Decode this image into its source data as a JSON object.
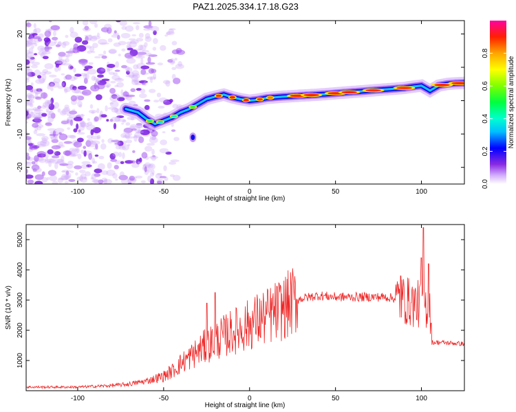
{
  "title": "PAZ1.2025.334.17.18.G23",
  "chart_data": [
    {
      "type": "heatmap",
      "name": "spectrogram",
      "xlabel": "Height of straight line (km)",
      "ylabel": "Frequency (Hz)",
      "xlim": [
        -130,
        125
      ],
      "ylim": [
        -25,
        24
      ],
      "xticks": [
        -100,
        -50,
        0,
        50,
        100
      ],
      "yticks": [
        -20,
        -10,
        0,
        10,
        20
      ],
      "xtick_labels": [
        "-100",
        "-50",
        "0",
        "50",
        "100"
      ],
      "ytick_labels": [
        "-20",
        "-10",
        "0",
        "10",
        "20"
      ],
      "ridge": {
        "x": [
          -72,
          -65,
          -60,
          -55,
          -50,
          -45,
          -40,
          -35,
          -30,
          -25,
          -20,
          -15,
          -10,
          -5,
          0,
          5,
          10,
          20,
          30,
          40,
          50,
          60,
          70,
          80,
          90,
          95,
          100,
          105,
          110,
          115,
          120,
          125
        ],
        "y": [
          -2.5,
          -3.5,
          -5.5,
          -7,
          -6,
          -5,
          -3.5,
          -2.5,
          -1,
          0.5,
          1.2,
          1.8,
          1.0,
          0.4,
          0.0,
          0.3,
          0.8,
          1.2,
          1.5,
          1.8,
          2.2,
          2.6,
          3.0,
          3.4,
          3.8,
          4.2,
          4.5,
          3.0,
          4.5,
          5.0,
          5.2,
          5.3
        ]
      },
      "noise_region_x": [
        -130,
        -55
      ],
      "colorbar": {
        "label": "Normalized spectral amplitude",
        "range": [
          0,
          1
        ],
        "ticks": [
          0.0,
          0.2,
          0.4,
          0.6,
          0.8
        ],
        "tick_labels": [
          "0.0",
          "0.2",
          "0.4",
          "0.6",
          "0.8"
        ]
      }
    },
    {
      "type": "line",
      "name": "snr",
      "xlabel": "Height of straight line (km)",
      "ylabel": "SNR (10 * v/v)",
      "xlim": [
        -130,
        125
      ],
      "ylim": [
        0,
        5500
      ],
      "xticks": [
        -100,
        -50,
        0,
        50,
        100
      ],
      "yticks": [
        1000,
        2000,
        3000,
        4000,
        5000
      ],
      "xtick_labels": [
        "-100",
        "-50",
        "0",
        "50",
        "100"
      ],
      "ytick_labels": [
        "1000",
        "2000",
        "3000",
        "4000",
        "5000"
      ],
      "color": "#ee2222",
      "envelope": {
        "x": [
          -130,
          -100,
          -80,
          -70,
          -60,
          -50,
          -45,
          -40,
          -35,
          -30,
          -25,
          -20,
          -15,
          -10,
          -5,
          0,
          5,
          10,
          15,
          20,
          25,
          30,
          40,
          50,
          60,
          70,
          80,
          85,
          90,
          95,
          100,
          103,
          105,
          106,
          110,
          125
        ],
        "y": [
          120,
          120,
          170,
          220,
          320,
          480,
          650,
          900,
          1100,
          1300,
          1500,
          1650,
          1800,
          1950,
          2050,
          2200,
          2350,
          2450,
          2600,
          2750,
          2950,
          3050,
          3150,
          3100,
          3100,
          3100,
          3100,
          3050,
          3000,
          2900,
          2850,
          2800,
          2800,
          1600,
          1600,
          1550
        ]
      },
      "peaks": [
        {
          "x": 101,
          "y": 5400
        },
        {
          "x": 100,
          "y": 4400
        },
        {
          "x": 104,
          "y": 4200
        },
        {
          "x": -20,
          "y": 3250
        },
        {
          "x": 88,
          "y": 3800
        },
        {
          "x": -25,
          "y": 2900
        }
      ]
    }
  ]
}
